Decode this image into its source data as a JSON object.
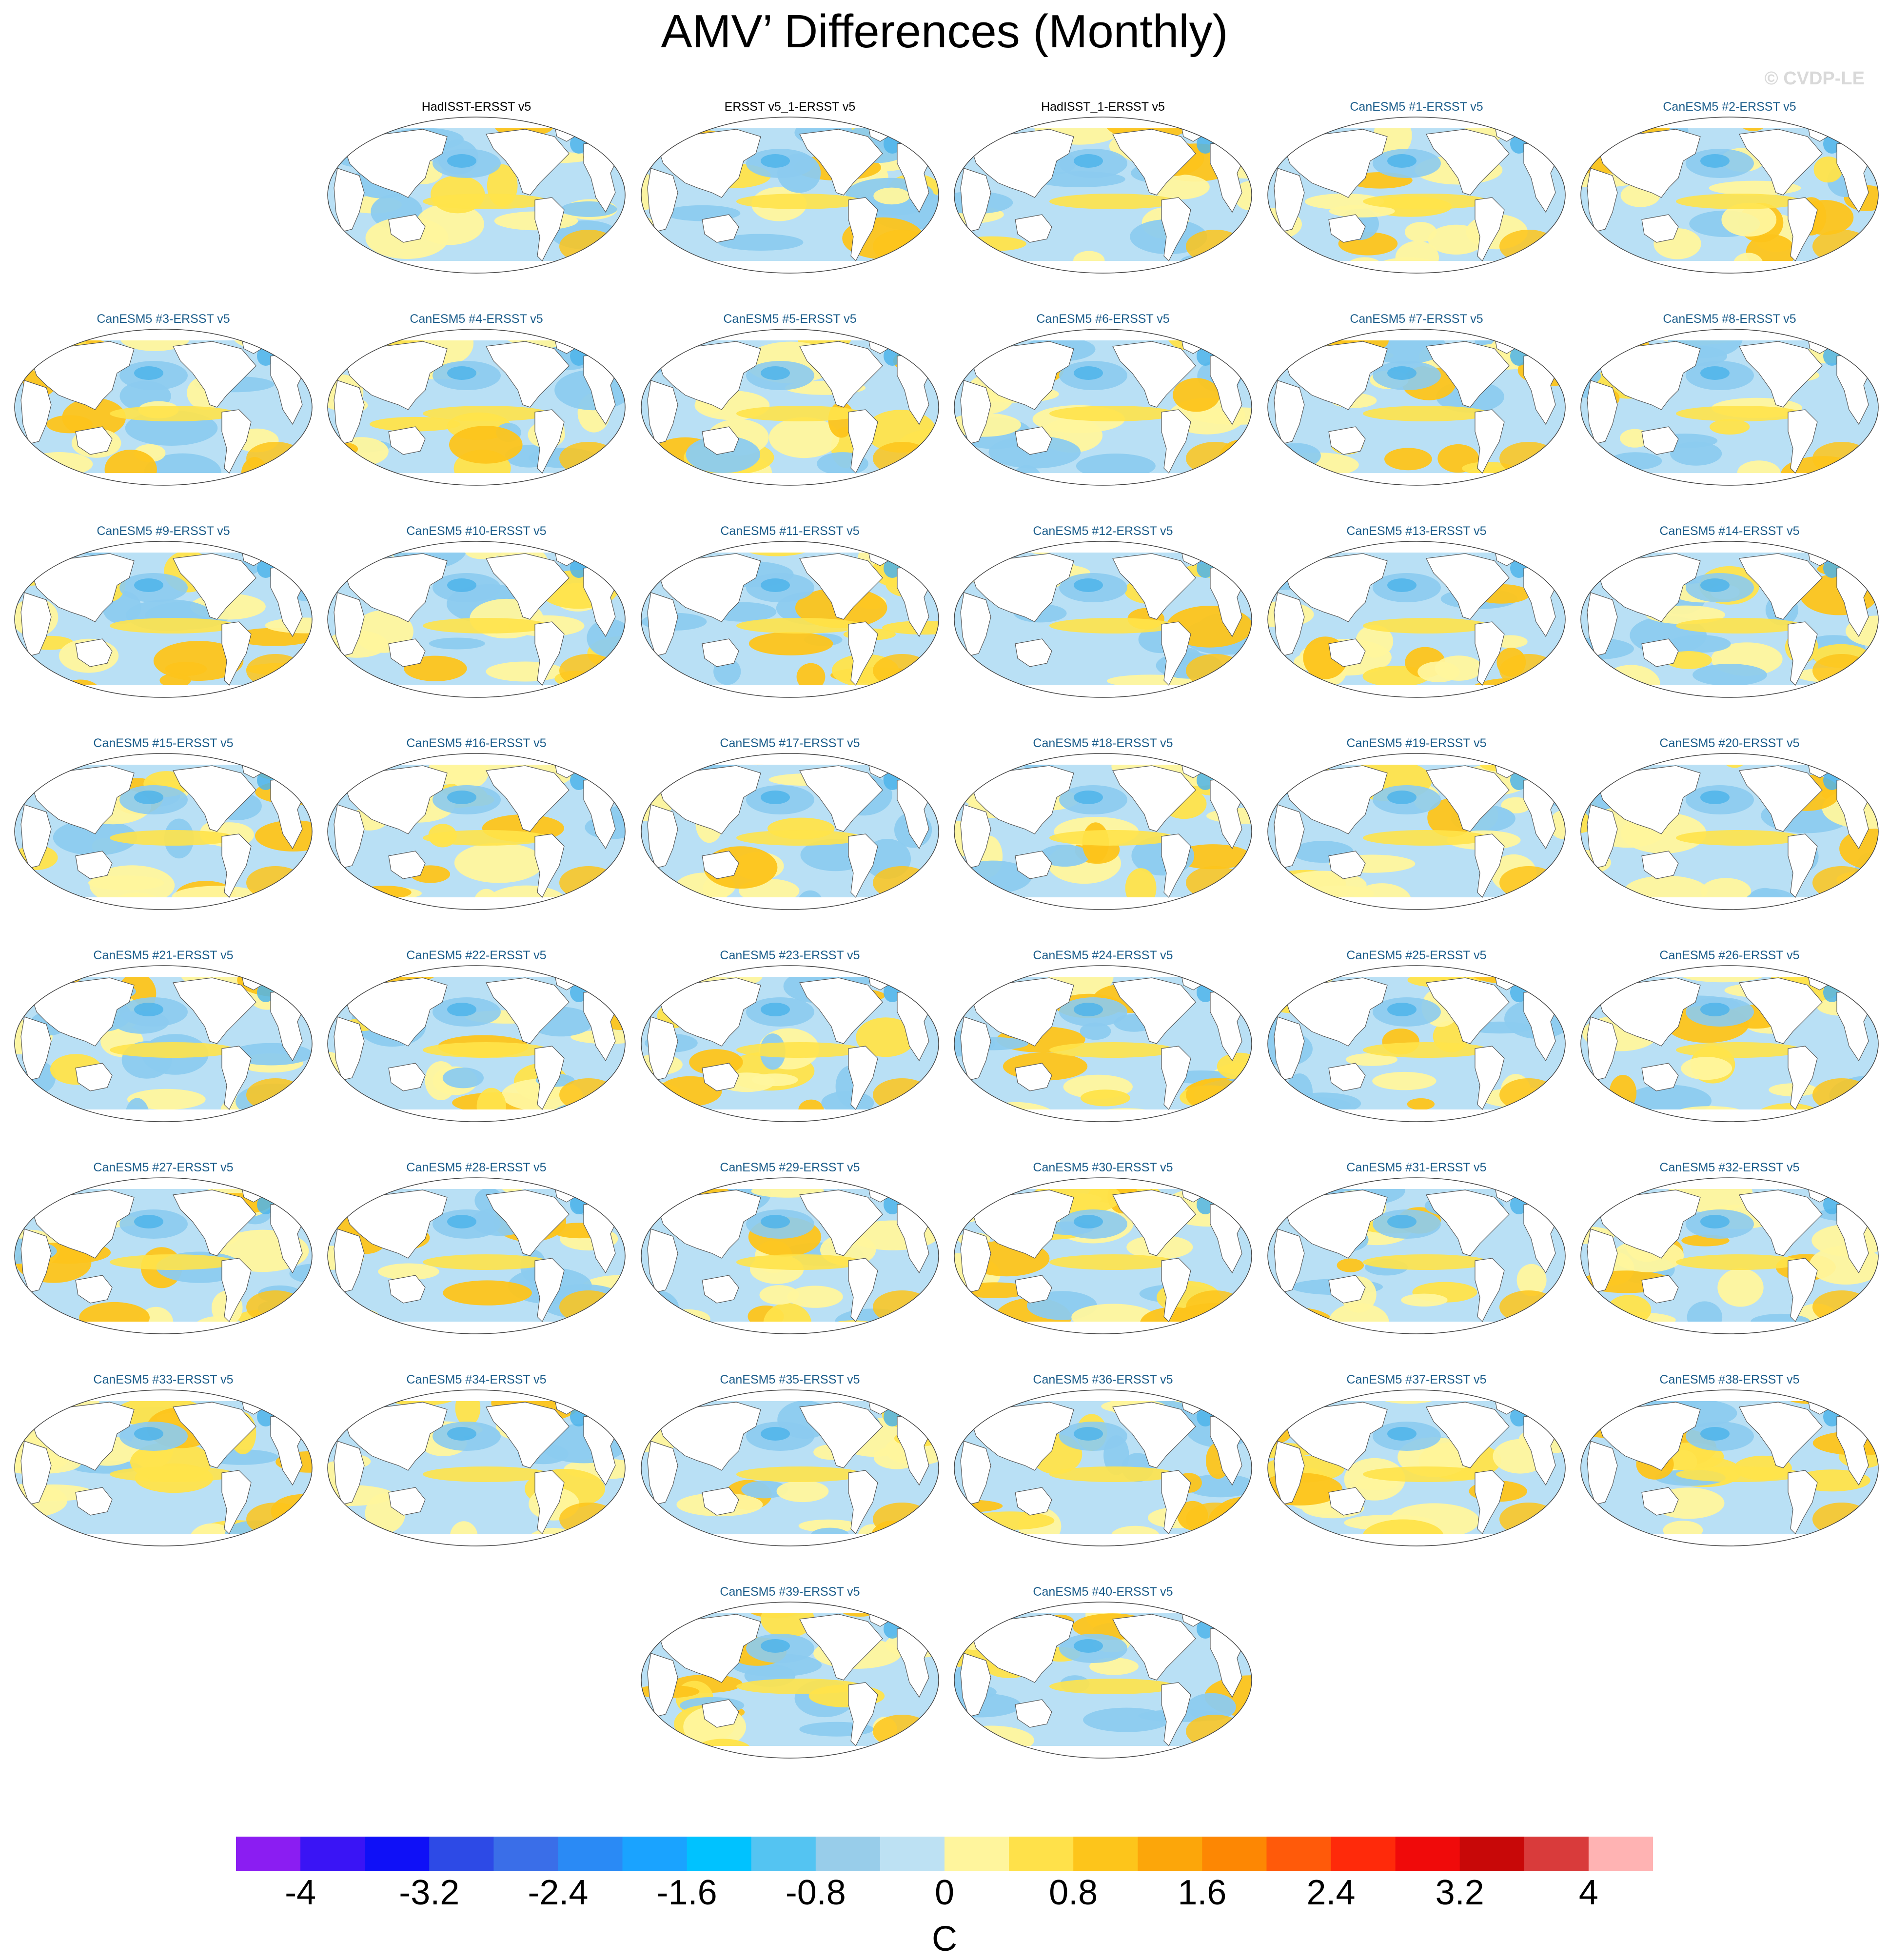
{
  "title": "AMV’ Differences (Monthly)",
  "watermark": "© CVDP-LE",
  "title_colors": {
    "observation": "#000000",
    "model": "#1a5c8a"
  },
  "panels": [
    {
      "label": "HadISST-ERSST v5",
      "kind": "observation",
      "grid_row": 0,
      "grid_col": 1
    },
    {
      "label": "ERSST v5_1-ERSST v5",
      "kind": "observation",
      "grid_row": 0,
      "grid_col": 2
    },
    {
      "label": "HadISST_1-ERSST v5",
      "kind": "observation",
      "grid_row": 0,
      "grid_col": 3
    },
    {
      "label": "CanESM5 #1-ERSST v5",
      "kind": "model",
      "grid_row": 0,
      "grid_col": 4
    },
    {
      "label": "CanESM5 #2-ERSST v5",
      "kind": "model",
      "grid_row": 0,
      "grid_col": 5
    },
    {
      "label": "CanESM5 #3-ERSST v5",
      "kind": "model",
      "grid_row": 1,
      "grid_col": 0
    },
    {
      "label": "CanESM5 #4-ERSST v5",
      "kind": "model",
      "grid_row": 1,
      "grid_col": 1
    },
    {
      "label": "CanESM5 #5-ERSST v5",
      "kind": "model",
      "grid_row": 1,
      "grid_col": 2
    },
    {
      "label": "CanESM5 #6-ERSST v5",
      "kind": "model",
      "grid_row": 1,
      "grid_col": 3
    },
    {
      "label": "CanESM5 #7-ERSST v5",
      "kind": "model",
      "grid_row": 1,
      "grid_col": 4
    },
    {
      "label": "CanESM5 #8-ERSST v5",
      "kind": "model",
      "grid_row": 1,
      "grid_col": 5
    },
    {
      "label": "CanESM5 #9-ERSST v5",
      "kind": "model",
      "grid_row": 2,
      "grid_col": 0
    },
    {
      "label": "CanESM5 #10-ERSST v5",
      "kind": "model",
      "grid_row": 2,
      "grid_col": 1
    },
    {
      "label": "CanESM5 #11-ERSST v5",
      "kind": "model",
      "grid_row": 2,
      "grid_col": 2
    },
    {
      "label": "CanESM5 #12-ERSST v5",
      "kind": "model",
      "grid_row": 2,
      "grid_col": 3
    },
    {
      "label": "CanESM5 #13-ERSST v5",
      "kind": "model",
      "grid_row": 2,
      "grid_col": 4
    },
    {
      "label": "CanESM5 #14-ERSST v5",
      "kind": "model",
      "grid_row": 2,
      "grid_col": 5
    },
    {
      "label": "CanESM5 #15-ERSST v5",
      "kind": "model",
      "grid_row": 3,
      "grid_col": 0
    },
    {
      "label": "CanESM5 #16-ERSST v5",
      "kind": "model",
      "grid_row": 3,
      "grid_col": 1
    },
    {
      "label": "CanESM5 #17-ERSST v5",
      "kind": "model",
      "grid_row": 3,
      "grid_col": 2
    },
    {
      "label": "CanESM5 #18-ERSST v5",
      "kind": "model",
      "grid_row": 3,
      "grid_col": 3
    },
    {
      "label": "CanESM5 #19-ERSST v5",
      "kind": "model",
      "grid_row": 3,
      "grid_col": 4
    },
    {
      "label": "CanESM5 #20-ERSST v5",
      "kind": "model",
      "grid_row": 3,
      "grid_col": 5
    },
    {
      "label": "CanESM5 #21-ERSST v5",
      "kind": "model",
      "grid_row": 4,
      "grid_col": 0
    },
    {
      "label": "CanESM5 #22-ERSST v5",
      "kind": "model",
      "grid_row": 4,
      "grid_col": 1
    },
    {
      "label": "CanESM5 #23-ERSST v5",
      "kind": "model",
      "grid_row": 4,
      "grid_col": 2
    },
    {
      "label": "CanESM5 #24-ERSST v5",
      "kind": "model",
      "grid_row": 4,
      "grid_col": 3
    },
    {
      "label": "CanESM5 #25-ERSST v5",
      "kind": "model",
      "grid_row": 4,
      "grid_col": 4
    },
    {
      "label": "CanESM5 #26-ERSST v5",
      "kind": "model",
      "grid_row": 4,
      "grid_col": 5
    },
    {
      "label": "CanESM5 #27-ERSST v5",
      "kind": "model",
      "grid_row": 5,
      "grid_col": 0
    },
    {
      "label": "CanESM5 #28-ERSST v5",
      "kind": "model",
      "grid_row": 5,
      "grid_col": 1
    },
    {
      "label": "CanESM5 #29-ERSST v5",
      "kind": "model",
      "grid_row": 5,
      "grid_col": 2
    },
    {
      "label": "CanESM5 #30-ERSST v5",
      "kind": "model",
      "grid_row": 5,
      "grid_col": 3
    },
    {
      "label": "CanESM5 #31-ERSST v5",
      "kind": "model",
      "grid_row": 5,
      "grid_col": 4
    },
    {
      "label": "CanESM5 #32-ERSST v5",
      "kind": "model",
      "grid_row": 5,
      "grid_col": 5
    },
    {
      "label": "CanESM5 #33-ERSST v5",
      "kind": "model",
      "grid_row": 6,
      "grid_col": 0
    },
    {
      "label": "CanESM5 #34-ERSST v5",
      "kind": "model",
      "grid_row": 6,
      "grid_col": 1
    },
    {
      "label": "CanESM5 #35-ERSST v5",
      "kind": "model",
      "grid_row": 6,
      "grid_col": 2
    },
    {
      "label": "CanESM5 #36-ERSST v5",
      "kind": "model",
      "grid_row": 6,
      "grid_col": 3
    },
    {
      "label": "CanESM5 #37-ERSST v5",
      "kind": "model",
      "grid_row": 6,
      "grid_col": 4
    },
    {
      "label": "CanESM5 #38-ERSST v5",
      "kind": "model",
      "grid_row": 6,
      "grid_col": 5
    },
    {
      "label": "CanESM5 #39-ERSST v5",
      "kind": "model",
      "grid_row": 7,
      "grid_col": 2
    },
    {
      "label": "CanESM5 #40-ERSST v5",
      "kind": "model",
      "grid_row": 7,
      "grid_col": 3
    }
  ],
  "map_colors": {
    "ocean_weak_negative": "#b9e0f5",
    "ocean_moderate_negative": "#8ccbef",
    "ocean_strong_negative": "#4fb4ea",
    "ocean_weak_positive": "#fff59d",
    "ocean_moderate_positive": "#ffe34a",
    "ocean_strong_positive": "#fdc41b",
    "land": "#ffffff",
    "coastline": "#555555",
    "outline": "#444444"
  },
  "colorbar": {
    "colors": [
      "#8b1df2",
      "#3a14f5",
      "#0f10f7",
      "#2d4ae6",
      "#3a6ee8",
      "#2a8af5",
      "#1aa3ff",
      "#00c2ff",
      "#54c4f2",
      "#98cdea",
      "#bde1f3",
      "#fff59d",
      "#ffe14a",
      "#fdc51b",
      "#fca60a",
      "#fd8703",
      "#ff5a0a",
      "#ff2a0a",
      "#f00a0a",
      "#c80808",
      "#d93b3b",
      "#ffb3b3"
    ],
    "tick_labels": [
      "-4",
      "-3.2",
      "-2.4",
      "-1.6",
      "-0.8",
      "0",
      "0.8",
      "1.6",
      "2.4",
      "3.2",
      "4"
    ],
    "tick_values": [
      -4,
      -3.2,
      -2.4,
      -1.6,
      -0.8,
      0,
      0.8,
      1.6,
      2.4,
      3.2,
      4
    ],
    "units": "C"
  }
}
